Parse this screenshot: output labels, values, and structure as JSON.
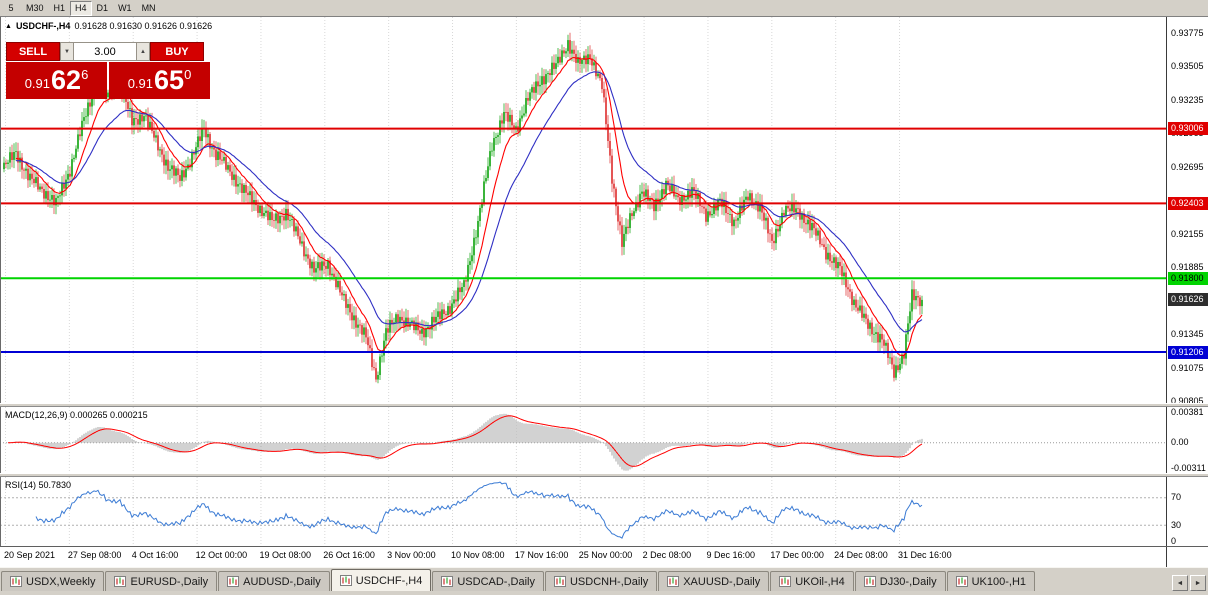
{
  "toolbar": {
    "periods": [
      "5",
      "M30",
      "H1",
      "H4",
      "D1",
      "W1",
      "MN"
    ],
    "active": "H4"
  },
  "icons": {
    "one_click_toggle": "▲",
    "volume_down": "▼",
    "volume_up": "▲",
    "tab_scroll_left": "◄",
    "tab_scroll_right": "►"
  },
  "chart": {
    "symbol": "USDCHF-,H4",
    "ohlc": "0.91628 0.91630 0.91626 0.91626",
    "trade_panel": {
      "sell_label": "SELL",
      "buy_label": "BUY",
      "volume": "3.00",
      "sell_price": {
        "prefix": "0.91",
        "big": "62",
        "sup": "6"
      },
      "buy_price": {
        "prefix": "0.91",
        "big": "65",
        "sup": "0"
      }
    },
    "axis_labels": [
      {
        "label": "0.93775",
        "price": 0.93775
      },
      {
        "label": "0.93505",
        "price": 0.93505
      },
      {
        "label": "0.93235",
        "price": 0.93235
      },
      {
        "label": "0.92965",
        "price": 0.92965
      },
      {
        "label": "0.92695",
        "price": 0.92695
      },
      {
        "label": "0.92155",
        "price": 0.92155
      },
      {
        "label": "0.91885",
        "price": 0.91885
      },
      {
        "label": "0.91345",
        "price": 0.91345
      },
      {
        "label": "0.91075",
        "price": 0.91075
      },
      {
        "label": "0.90805",
        "price": 0.90805
      }
    ],
    "hlines": [
      {
        "price": 0.93006,
        "label": "0.93006",
        "color": "#e00000",
        "text_color": "#ffffff"
      },
      {
        "price": 0.92403,
        "label": "0.92403",
        "color": "#e00000",
        "text_color": "#ffffff"
      },
      {
        "price": 0.918,
        "label": "0.91800",
        "color": "#00d400",
        "text_color": "#000000"
      },
      {
        "price": 0.91206,
        "label": "0.91206",
        "color": "#0000d4",
        "text_color": "#ffffff"
      }
    ],
    "current_price": {
      "value": 0.91626,
      "label": "0.91626",
      "bg": "#2e2e2e"
    }
  },
  "macd": {
    "label": "MACD(12,26,9) 0.000265 0.000215",
    "axis": [
      "0.00381",
      "0.00",
      "-0.00311"
    ]
  },
  "rsi": {
    "label": "RSI(14) 50.7830",
    "axis": [
      "70",
      "30",
      "0"
    ],
    "levels": [
      70,
      30
    ]
  },
  "time_axis": {
    "labels": [
      "20 Sep 2021",
      "27 Sep 08:00",
      "4 Oct 16:00",
      "12 Oct 00:00",
      "19 Oct 08:00",
      "26 Oct 16:00",
      "3 Nov 00:00",
      "10 Nov 08:00",
      "17 Nov 16:00",
      "25 Nov 00:00",
      "2 Dec 08:00",
      "9 Dec 16:00",
      "17 Dec 00:00",
      "24 Dec 08:00",
      "31 Dec 16:00"
    ]
  },
  "tabs": {
    "items": [
      "USDX,Weekly",
      "EURUSD-,Daily",
      "AUDUSD-,Daily",
      "USDCHF-,H4",
      "USDCAD-,Daily",
      "USDCNH-,Daily",
      "XAUUSD-,Daily",
      "UKOil-,H4",
      "DJ30-,Daily",
      "UK100-,H1"
    ],
    "active": "USDCHF-,H4"
  },
  "chart_data": {
    "type": "candlestick",
    "symbol": "USDCHF-",
    "timeframe": "H4",
    "current_bar": {
      "open": 0.91628,
      "high": 0.9163,
      "low": 0.91626,
      "close": 0.91626
    },
    "bid": 0.91626,
    "ask": 0.9165,
    "ylim": [
      0.90795,
      0.93905
    ],
    "y_axis_ticks": [
      0.93775,
      0.93505,
      0.93235,
      0.92965,
      0.92695,
      0.92425,
      0.92155,
      0.91885,
      0.91615,
      0.91345,
      0.91075,
      0.90805
    ],
    "x_labels": [
      "20 Sep 2021",
      "27 Sep 08:00",
      "4 Oct 16:00",
      "12 Oct 00:00",
      "19 Oct 08:00",
      "26 Oct 16:00",
      "3 Nov 00:00",
      "10 Nov 08:00",
      "17 Nov 16:00",
      "25 Nov 00:00",
      "2 Dec 08:00",
      "9 Dec 16:00",
      "17 Dec 00:00",
      "24 Dec 08:00",
      "31 Dec 16:00"
    ],
    "bars": 460,
    "last_price": 0.91626,
    "horizontal_lines": [
      0.93006,
      0.92403,
      0.918,
      0.91206
    ],
    "colors": {
      "up": "#0aa10a",
      "down": "#dd2b2b"
    },
    "moving_averages": [
      {
        "period": 12,
        "color": "#ff0000"
      },
      {
        "period": 30,
        "color": "#2f2fc4"
      }
    ],
    "indicators": [
      {
        "name": "MACD",
        "params": [
          12,
          26,
          9
        ],
        "current": [
          0.000265,
          0.000215
        ],
        "y_axis": [
          0.00381,
          0,
          -0.00311
        ]
      },
      {
        "name": "RSI",
        "params": [
          14
        ],
        "current": 50.783,
        "levels": [
          70,
          30
        ],
        "range": [
          0,
          100
        ]
      }
    ],
    "price_path_anchors": [
      [
        4,
        0.9268
      ],
      [
        18,
        0.9281
      ],
      [
        32,
        0.926
      ],
      [
        46,
        0.925
      ],
      [
        58,
        0.924
      ],
      [
        72,
        0.9268
      ],
      [
        86,
        0.9308
      ],
      [
        98,
        0.9338
      ],
      [
        110,
        0.9326
      ],
      [
        122,
        0.9337
      ],
      [
        134,
        0.9306
      ],
      [
        146,
        0.9312
      ],
      [
        158,
        0.929
      ],
      [
        170,
        0.927
      ],
      [
        182,
        0.926
      ],
      [
        194,
        0.9278
      ],
      [
        206,
        0.93
      ],
      [
        218,
        0.928
      ],
      [
        232,
        0.9266
      ],
      [
        246,
        0.925
      ],
      [
        260,
        0.9238
      ],
      [
        274,
        0.9226
      ],
      [
        288,
        0.9233
      ],
      [
        302,
        0.921
      ],
      [
        316,
        0.9186
      ],
      [
        330,
        0.9192
      ],
      [
        344,
        0.9165
      ],
      [
        356,
        0.9148
      ],
      [
        368,
        0.9132
      ],
      [
        378,
        0.91
      ],
      [
        388,
        0.9136
      ],
      [
        400,
        0.915
      ],
      [
        412,
        0.9142
      ],
      [
        424,
        0.9137
      ],
      [
        438,
        0.9147
      ],
      [
        452,
        0.9157
      ],
      [
        466,
        0.9174
      ],
      [
        480,
        0.9225
      ],
      [
        494,
        0.9288
      ],
      [
        506,
        0.9312
      ],
      [
        518,
        0.93
      ],
      [
        530,
        0.9325
      ],
      [
        544,
        0.9341
      ],
      [
        558,
        0.9351
      ],
      [
        570,
        0.937
      ],
      [
        580,
        0.9352
      ],
      [
        592,
        0.936
      ],
      [
        604,
        0.9334
      ],
      [
        614,
        0.9262
      ],
      [
        624,
        0.9208
      ],
      [
        634,
        0.9232
      ],
      [
        644,
        0.9251
      ],
      [
        656,
        0.9237
      ],
      [
        668,
        0.9257
      ],
      [
        680,
        0.9242
      ],
      [
        694,
        0.9251
      ],
      [
        708,
        0.9231
      ],
      [
        722,
        0.9241
      ],
      [
        736,
        0.9226
      ],
      [
        750,
        0.9245
      ],
      [
        762,
        0.9239
      ],
      [
        774,
        0.9207
      ],
      [
        786,
        0.9236
      ],
      [
        800,
        0.9234
      ],
      [
        814,
        0.9221
      ],
      [
        828,
        0.9201
      ],
      [
        842,
        0.9187
      ],
      [
        856,
        0.9161
      ],
      [
        870,
        0.9142
      ],
      [
        884,
        0.9131
      ],
      [
        896,
        0.9104
      ],
      [
        906,
        0.912
      ],
      [
        914,
        0.9165
      ],
      [
        922,
        0.9163
      ]
    ]
  }
}
